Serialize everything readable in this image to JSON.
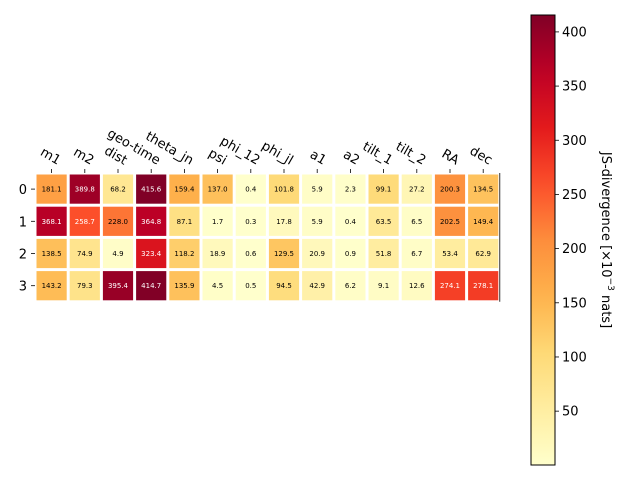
{
  "chart_data": {
    "type": "heatmap",
    "columns": [
      "m1",
      "m2",
      "dist",
      "geo-time",
      "theta_jn",
      "psi",
      "phi_12",
      "phi_jl",
      "a1",
      "a2",
      "tilt_1",
      "tilt_2",
      "RA",
      "dec"
    ],
    "rows": [
      "0",
      "1",
      "2",
      "3"
    ],
    "values": [
      [
        181.1,
        389.8,
        68.2,
        415.6,
        159.4,
        137.0,
        0.4,
        101.8,
        5.9,
        2.3,
        99.1,
        27.2,
        200.3,
        134.5
      ],
      [
        368.1,
        258.7,
        228.0,
        364.8,
        87.1,
        1.7,
        0.3,
        17.8,
        5.9,
        0.4,
        63.5,
        6.5,
        202.5,
        149.4
      ],
      [
        138.5,
        74.9,
        4.9,
        323.4,
        118.2,
        18.9,
        0.6,
        129.5,
        20.9,
        0.9,
        51.8,
        6.7,
        53.4,
        62.9
      ],
      [
        143.2,
        79.3,
        395.4,
        414.7,
        135.9,
        4.5,
        0.5,
        94.5,
        42.9,
        6.2,
        9.1,
        12.6,
        274.1,
        278.1
      ]
    ],
    "colormap": "YlOrRd",
    "vmin": 0.3,
    "vmax": 415.6,
    "colorbar": {
      "label_prefix": "JS-divergence [×10",
      "label_exp": "−3",
      "label_suffix": " nats]",
      "ticks": [
        50,
        100,
        150,
        200,
        250,
        300,
        350,
        400
      ]
    }
  }
}
